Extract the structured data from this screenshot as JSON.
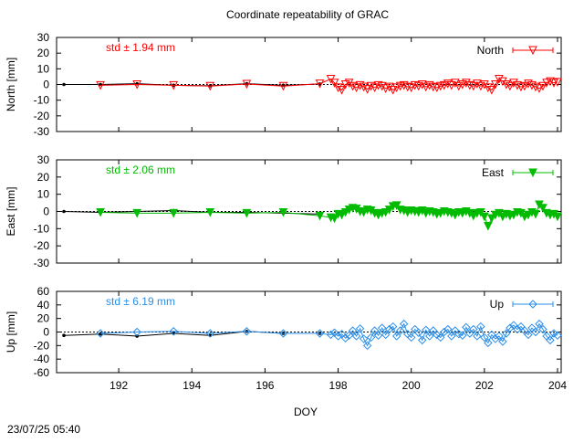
{
  "chart_data": {
    "type": "scatter",
    "title": "Coordinate repeatability of GRAC",
    "xlabel": "DOY",
    "timestamp": "23/07/25 05:40",
    "x_range": [
      190.3,
      204.1
    ],
    "x_ticks": [
      192,
      194,
      196,
      198,
      200,
      202,
      204
    ],
    "x_tick_labels": [
      "192",
      "194",
      "196",
      "198",
      "200",
      "202",
      "204"
    ],
    "panels": [
      {
        "ylabel": "North [mm]",
        "legend": "North",
        "std_label": "std ± 1.94 mm",
        "color": "#ff0000",
        "marker": "triangle-down-open",
        "ylim": [
          -30,
          30
        ],
        "y_ticks": [
          30,
          20,
          10,
          0,
          -10,
          -20,
          -30
        ],
        "y_tick_labels": [
          "30",
          "20",
          "10",
          "0",
          "-10",
          "-20",
          "-30"
        ],
        "daily": {
          "x": [
            190.5,
            191.5,
            192.5,
            193.5,
            194.5,
            195.5,
            196.5,
            197.5
          ],
          "y": [
            0,
            0,
            0.5,
            -0.5,
            -0.8,
            0.5,
            -0.5,
            0.3
          ]
        },
        "series": {
          "x": [
            191.5,
            192.5,
            193.5,
            194.5,
            195.5,
            196.5,
            197.5,
            197.8,
            197.9,
            198.0,
            198.1,
            198.2,
            198.3,
            198.4,
            198.5,
            198.6,
            198.7,
            198.8,
            198.9,
            199.0,
            199.1,
            199.2,
            199.3,
            199.4,
            199.5,
            199.6,
            199.7,
            199.8,
            199.9,
            200.0,
            200.1,
            200.2,
            200.3,
            200.4,
            200.5,
            200.6,
            200.7,
            200.8,
            200.9,
            201.0,
            201.1,
            201.2,
            201.3,
            201.4,
            201.5,
            201.6,
            201.7,
            201.8,
            201.9,
            202.0,
            202.1,
            202.2,
            202.3,
            202.4,
            202.5,
            202.6,
            202.7,
            202.8,
            202.9,
            203.0,
            203.1,
            203.2,
            203.3,
            203.4,
            203.5,
            203.6,
            203.7,
            203.8,
            203.9,
            204.0
          ],
          "y": [
            -0.5,
            0,
            -0.5,
            -1,
            0.3,
            -1,
            0.5,
            3.5,
            1,
            -2,
            -3.5,
            0,
            1,
            -1,
            -2,
            -0.5,
            -1.5,
            -3,
            -1,
            -2,
            -0.5,
            -1,
            -2.5,
            -1.5,
            -3.5,
            -2,
            -1,
            -0.5,
            -1.5,
            -2,
            -0.5,
            -1,
            0,
            -1.5,
            -0.5,
            -1.5,
            -2,
            -1,
            -0.5,
            0.5,
            -0.5,
            1,
            -1,
            0,
            1,
            -0.5,
            -1,
            0.5,
            -1,
            0,
            -2,
            -3.5,
            0,
            3.5,
            2,
            0,
            -1,
            1,
            -0.5,
            -1.5,
            -1,
            0.5,
            -0.5,
            -1.5,
            -2.5,
            -1,
            1,
            2,
            1,
            1.5
          ]
        }
      },
      {
        "ylabel": "East [mm]",
        "legend": "East",
        "std_label": "std ± 2.06 mm",
        "color": "#00bb00",
        "marker": "triangle-down-filled",
        "ylim": [
          -30,
          30
        ],
        "y_ticks": [
          30,
          20,
          10,
          0,
          -10,
          -20,
          -30
        ],
        "y_tick_labels": [
          "30",
          "20",
          "10",
          "0",
          "-10",
          "-20",
          "-30"
        ],
        "daily": {
          "x": [
            190.5,
            191.5,
            192.5,
            193.5,
            194.5,
            195.5,
            196.5,
            197.5
          ],
          "y": [
            0,
            -0.5,
            0,
            0.5,
            -0.5,
            -0.5,
            -1,
            -1.5
          ]
        },
        "series": {
          "x": [
            191.5,
            192.5,
            193.5,
            194.5,
            195.5,
            196.5,
            197.5,
            197.8,
            197.9,
            198.0,
            198.1,
            198.2,
            198.3,
            198.4,
            198.5,
            198.6,
            198.7,
            198.8,
            198.9,
            199.0,
            199.1,
            199.2,
            199.3,
            199.4,
            199.5,
            199.6,
            199.7,
            199.8,
            199.9,
            200.0,
            200.1,
            200.2,
            200.3,
            200.4,
            200.5,
            200.6,
            200.7,
            200.8,
            200.9,
            201.0,
            201.1,
            201.2,
            201.3,
            201.4,
            201.5,
            201.6,
            201.7,
            201.8,
            201.9,
            202.0,
            202.1,
            202.2,
            202.3,
            202.4,
            202.5,
            202.6,
            202.7,
            202.8,
            202.9,
            203.0,
            203.1,
            203.2,
            203.3,
            203.4,
            203.5,
            203.6,
            203.7,
            203.8,
            203.9,
            204.0
          ],
          "y": [
            -0.5,
            -1,
            -1,
            -0.5,
            -1,
            -0.5,
            -2.5,
            -3.5,
            -4,
            -1.5,
            -2,
            -0.5,
            1,
            2,
            1.5,
            0,
            -0.5,
            1,
            0.5,
            -1,
            -2,
            -1,
            -0.5,
            1,
            3,
            3.5,
            1,
            0.5,
            -0.5,
            0.5,
            0,
            -0.5,
            0.5,
            -1,
            0,
            -0.5,
            -1.5,
            -1,
            0,
            -0.5,
            -1,
            -2,
            -0.5,
            -1,
            0,
            -1,
            -2.5,
            -1,
            -0.5,
            -3,
            -8.5,
            -4,
            -2,
            -1,
            -3,
            -1.5,
            -2.5,
            -2,
            -0.5,
            -1,
            -3,
            -2,
            -0.5,
            -1.5,
            4,
            2,
            -1,
            -2,
            -1.5,
            -3
          ]
        }
      },
      {
        "ylabel": "Up [mm]",
        "legend": "Up",
        "std_label": "std ± 6.19 mm",
        "color": "#2a8ee8",
        "marker": "diamond-open",
        "ylim": [
          -60,
          60
        ],
        "y_ticks": [
          60,
          40,
          20,
          0,
          -20,
          -40,
          -60
        ],
        "y_tick_labels": [
          "60",
          "40",
          "20",
          "0",
          "-20",
          "-40",
          "-60"
        ],
        "daily": {
          "x": [
            190.5,
            191.5,
            192.5,
            193.5,
            194.5,
            195.5,
            196.5,
            197.5
          ],
          "y": [
            -5,
            -3,
            -6,
            -2,
            -5,
            1,
            -2,
            -2
          ]
        },
        "series": {
          "x": [
            191.5,
            192.5,
            193.5,
            194.5,
            195.5,
            196.5,
            197.5,
            197.8,
            197.9,
            198.0,
            198.1,
            198.2,
            198.3,
            198.4,
            198.5,
            198.6,
            198.7,
            198.8,
            198.9,
            199.0,
            199.1,
            199.2,
            199.3,
            199.4,
            199.5,
            199.6,
            199.7,
            199.8,
            199.9,
            200.0,
            200.1,
            200.2,
            200.3,
            200.4,
            200.5,
            200.6,
            200.7,
            200.8,
            200.9,
            201.0,
            201.1,
            201.2,
            201.3,
            201.4,
            201.5,
            201.6,
            201.7,
            201.8,
            201.9,
            202.0,
            202.1,
            202.2,
            202.3,
            202.4,
            202.5,
            202.6,
            202.7,
            202.8,
            202.9,
            203.0,
            203.1,
            203.2,
            203.3,
            203.4,
            203.5,
            203.6,
            203.7,
            203.8,
            203.9,
            204.0
          ],
          "y": [
            -2,
            0,
            1,
            -2,
            1,
            -2,
            -2,
            -4,
            -1,
            -6,
            -3,
            -9,
            -5,
            2,
            -6,
            5,
            -10,
            -20,
            -8,
            2,
            -5,
            6,
            -4,
            4,
            8,
            -6,
            2,
            12,
            -3,
            -8,
            4,
            -1,
            -12,
            3,
            -6,
            2,
            -4,
            -8,
            0,
            4,
            -6,
            2,
            -3,
            -5,
            7,
            -2,
            4,
            -6,
            8,
            -8,
            -16,
            -4,
            -10,
            -6,
            -14,
            -2,
            6,
            10,
            4,
            8,
            2,
            -4,
            6,
            0,
            12,
            4,
            -6,
            -12,
            -2,
            -5
          ]
        }
      }
    ]
  }
}
